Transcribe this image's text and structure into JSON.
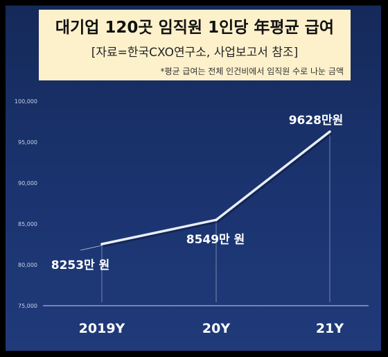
{
  "header": {
    "title": "대기업 120곳 임직원 1인당 年평균 급여",
    "subtitle": "[자료=한국CXO연구소, 사업보고서 참조]",
    "note": "*평균 급여는 전체 인건비에서 임직원 수로 나눈 금액"
  },
  "colors": {
    "background": "#1b3470",
    "line": "#e8eef8",
    "title_box": "#fdf1cc"
  },
  "chart_data": {
    "type": "line",
    "title": "대기업 120곳 임직원 1인당 年평균 급여",
    "categories": [
      "2019Y",
      "20Y",
      "21Y"
    ],
    "values": [
      82530,
      85490,
      96280
    ],
    "data_labels": [
      "8253만 원",
      "8549만 원",
      "9628만원"
    ],
    "y_ticks": [
      "75,000",
      "80,000",
      "85,000",
      "90,000",
      "95,000",
      "100,000"
    ],
    "ylim": [
      75000,
      100000
    ],
    "xlabel": "",
    "ylabel": "",
    "grid": false
  }
}
